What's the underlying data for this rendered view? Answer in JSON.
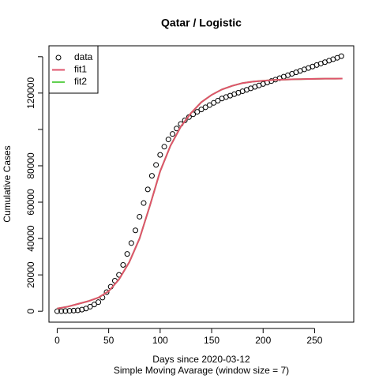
{
  "chart_data": {
    "type": "line",
    "title": "Qatar / Logistic",
    "xlabel": "Days since 2020-03-12",
    "subtitle": "Simple Moving Avarage (window size = 7)",
    "ylabel": "Cumulative Cases",
    "xlim": [
      -8,
      288
    ],
    "ylim": [
      -6000,
      146000
    ],
    "xticks": [
      0,
      50,
      100,
      150,
      200,
      250
    ],
    "yticks": [
      0,
      20000,
      40000,
      60000,
      80000,
      {
        "value": 100000,
        "label": null
      },
      120000,
      {
        "value": 140000,
        "label": null
      }
    ],
    "legend": "top-left",
    "series": [
      {
        "name": "data",
        "kind": "points",
        "color": "#000000",
        "x": [
          0,
          4,
          8,
          12,
          16,
          20,
          24,
          28,
          32,
          36,
          40,
          44,
          48,
          52,
          56,
          60,
          64,
          68,
          72,
          76,
          80,
          84,
          88,
          92,
          96,
          100,
          104,
          108,
          112,
          116,
          120,
          124,
          128,
          132,
          136,
          140,
          144,
          148,
          152,
          156,
          160,
          164,
          168,
          172,
          176,
          180,
          184,
          188,
          192,
          196,
          200,
          204,
          208,
          212,
          216,
          220,
          224,
          228,
          232,
          236,
          240,
          244,
          248,
          252,
          256,
          260,
          264,
          268,
          272,
          276
        ],
        "values": [
          0,
          50,
          120,
          220,
          350,
          500,
          900,
          1500,
          2500,
          3700,
          5000,
          7500,
          10500,
          13500,
          16800,
          20000,
          25500,
          31500,
          37500,
          44500,
          52000,
          59500,
          67000,
          74500,
          80500,
          86000,
          90500,
          94500,
          97500,
          100500,
          103000,
          105000,
          106800,
          108300,
          109700,
          111000,
          112200,
          113400,
          114600,
          115800,
          117000,
          117800,
          118600,
          119400,
          120200,
          121000,
          121800,
          122600,
          123400,
          124200,
          125000,
          125800,
          126600,
          127400,
          128200,
          129000,
          129800,
          130600,
          131400,
          132200,
          133000,
          133800,
          134600,
          135400,
          136200,
          137000,
          137800,
          138600,
          139400,
          140300
        ]
      },
      {
        "name": "fit1",
        "kind": "line",
        "color": "#DF536B",
        "x": [
          0,
          10,
          20,
          30,
          40,
          50,
          60,
          70,
          80,
          90,
          100,
          110,
          120,
          130,
          140,
          150,
          160,
          170,
          180,
          190,
          200,
          210,
          220,
          230,
          240,
          250,
          260,
          270,
          277
        ],
        "values": [
          1500,
          2500,
          4000,
          5500,
          7500,
          11000,
          17500,
          27000,
          40000,
          58000,
          77000,
          91000,
          101500,
          109000,
          115000,
          119000,
          122000,
          124000,
          125500,
          126300,
          126800,
          127200,
          127400,
          127600,
          127700,
          127800,
          127900,
          127900,
          128000
        ]
      },
      {
        "name": "fit2",
        "kind": "line",
        "color": "#61D04F",
        "x": [
          0,
          10,
          20,
          30,
          40,
          50,
          60,
          70,
          80,
          90,
          100,
          110,
          120,
          130,
          140,
          150,
          160,
          170,
          180,
          190,
          200,
          210,
          220,
          230,
          240,
          250,
          260,
          270,
          277
        ],
        "values": [
          1500,
          2500,
          4000,
          5500,
          7500,
          11000,
          17500,
          27000,
          40000,
          58000,
          77000,
          91000,
          101500,
          109000,
          115000,
          119000,
          122000,
          124000,
          125500,
          126300,
          126800,
          127200,
          127400,
          127600,
          127700,
          127800,
          127900,
          127900,
          128000
        ]
      }
    ]
  }
}
